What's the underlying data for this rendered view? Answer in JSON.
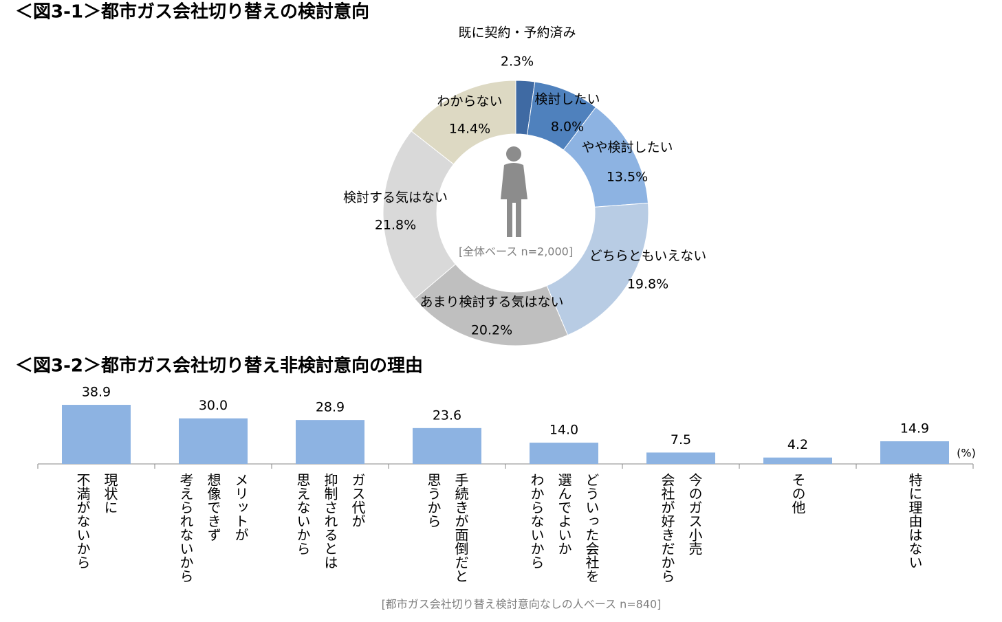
{
  "chart_data": [
    {
      "type": "donut",
      "title": "＜図3-1＞都市ガス会社切り替えの検討意向",
      "note": "[全体ベース n=2,000]",
      "categories": [
        "既に契約・予約済み",
        "検討したい",
        "やや検討したい",
        "どちらともいえない",
        "あまり検討する気はない",
        "検討する気はない",
        "わからない"
      ],
      "values": [
        2.3,
        8.0,
        13.5,
        19.8,
        20.2,
        21.8,
        14.4
      ],
      "value_labels": [
        "2.3%",
        "8.0%",
        "13.5%",
        "19.8%",
        "20.2%",
        "21.8%",
        "14.4%"
      ],
      "colors": [
        "#3f6aa3",
        "#4f81bd",
        "#8db3e2",
        "#b8cce4",
        "#bfbfbf",
        "#d9d9d9",
        "#ddd9c3"
      ]
    },
    {
      "type": "bar",
      "title": "＜図3-2＞都市ガス会社切り替え非検討意向の理由",
      "unit": "(%)",
      "note": "[都市ガス会社切り替え検討意向なしの人ベース n=840]",
      "categories": [
        [
          "現状に",
          "不満がないから"
        ],
        [
          "メリットが",
          "想像できず",
          "考えられないから"
        ],
        [
          "ガス代が",
          "抑制されるとは",
          "思えないから"
        ],
        [
          "手続きが面倒だと",
          "思うから"
        ],
        [
          "どういった会社を",
          "選んでよいか",
          "わからないから"
        ],
        [
          "今のガス小売",
          "会社が好きだから"
        ],
        [
          "その他"
        ],
        [
          "特に理由はない"
        ]
      ],
      "values": [
        38.9,
        30.0,
        28.9,
        23.6,
        14.0,
        7.5,
        4.2,
        14.9
      ],
      "value_labels": [
        "38.9",
        "30.0",
        "28.9",
        "23.6",
        "14.0",
        "7.5",
        "4.2",
        "14.9"
      ],
      "color": "#8db3e2"
    }
  ]
}
